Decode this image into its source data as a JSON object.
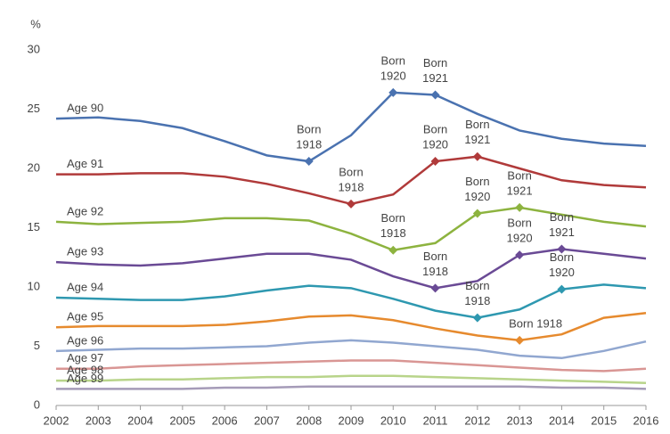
{
  "chart_data": {
    "type": "line",
    "y_label": "%",
    "x": [
      2002,
      2003,
      2004,
      2005,
      2006,
      2007,
      2008,
      2009,
      2010,
      2011,
      2012,
      2013,
      2014,
      2015,
      2016
    ],
    "xlim": [
      2002,
      2016
    ],
    "xticks": [
      2002,
      2003,
      2004,
      2005,
      2006,
      2007,
      2008,
      2009,
      2010,
      2011,
      2012,
      2013,
      2014,
      2015,
      2016
    ],
    "ylim": [
      0,
      30
    ],
    "yticks": [
      0,
      5,
      10,
      15,
      20,
      25,
      30
    ],
    "grid": false,
    "series": [
      {
        "name": "Age 90",
        "color": "#4a72b0",
        "values": [
          24.2,
          24.3,
          24.0,
          23.4,
          22.3,
          21.1,
          20.6,
          22.8,
          26.4,
          26.2,
          24.6,
          23.2,
          22.5,
          22.1,
          21.9
        ],
        "annotations": [
          {
            "x": 2008,
            "label": [
              "Born",
              "1918"
            ]
          },
          {
            "x": 2010,
            "label": [
              "Born",
              "1920"
            ]
          },
          {
            "x": 2011,
            "label": [
              "Born",
              "1921"
            ]
          }
        ]
      },
      {
        "name": "Age 91",
        "color": "#b03a3a",
        "values": [
          19.5,
          19.5,
          19.6,
          19.6,
          19.3,
          18.7,
          17.9,
          17.0,
          17.8,
          20.6,
          21.0,
          20.0,
          19.0,
          18.6,
          18.4
        ],
        "annotations": [
          {
            "x": 2009,
            "label": [
              "Born",
              "1918"
            ]
          },
          {
            "x": 2011,
            "label": [
              "Born",
              "1920"
            ]
          },
          {
            "x": 2012,
            "label": [
              "Born",
              "1921"
            ]
          }
        ]
      },
      {
        "name": "Age 92",
        "color": "#8db33f",
        "values": [
          15.5,
          15.3,
          15.4,
          15.5,
          15.8,
          15.8,
          15.6,
          14.5,
          13.1,
          13.7,
          16.2,
          16.7,
          16.1,
          15.5,
          15.1
        ],
        "annotations": [
          {
            "x": 2010,
            "label": [
              "Born",
              "1918"
            ]
          },
          {
            "x": 2012,
            "label": [
              "Born",
              "1920"
            ]
          },
          {
            "x": 2013,
            "label": [
              "Born",
              "1921"
            ]
          }
        ]
      },
      {
        "name": "Age 93",
        "color": "#6a4a95",
        "values": [
          12.1,
          11.9,
          11.8,
          12.0,
          12.4,
          12.8,
          12.8,
          12.3,
          10.9,
          9.9,
          10.5,
          12.7,
          13.2,
          12.8,
          12.4
        ],
        "annotations": [
          {
            "x": 2011,
            "label": [
              "Born",
              "1918"
            ]
          },
          {
            "x": 2013,
            "label": [
              "Born",
              "1920"
            ]
          },
          {
            "x": 2014,
            "label": [
              "Born",
              "1921"
            ]
          }
        ]
      },
      {
        "name": "Age 94",
        "color": "#2e98b0",
        "values": [
          9.1,
          9.0,
          8.9,
          8.9,
          9.2,
          9.7,
          10.1,
          9.9,
          9.0,
          8.0,
          7.4,
          8.1,
          9.8,
          10.2,
          9.9
        ],
        "annotations": [
          {
            "x": 2012,
            "label": [
              "Born",
              "1918"
            ]
          },
          {
            "x": 2014,
            "label": [
              "Born",
              "1920"
            ]
          }
        ]
      },
      {
        "name": "Age 95",
        "color": "#e68a2e",
        "values": [
          6.6,
          6.7,
          6.7,
          6.7,
          6.8,
          7.1,
          7.5,
          7.6,
          7.2,
          6.5,
          5.9,
          5.5,
          6.0,
          7.4,
          7.8
        ],
        "annotations": [
          {
            "x": 2013,
            "label": [
              "Born 1918"
            ]
          }
        ]
      },
      {
        "name": "Age 96",
        "color": "#91a7d0",
        "values": [
          4.6,
          4.7,
          4.8,
          4.8,
          4.9,
          5.0,
          5.3,
          5.5,
          5.3,
          5.0,
          4.7,
          4.2,
          4.0,
          4.6,
          5.4
        ]
      },
      {
        "name": "Age 97",
        "color": "#d99694",
        "values": [
          3.1,
          3.1,
          3.3,
          3.4,
          3.5,
          3.6,
          3.7,
          3.8,
          3.8,
          3.6,
          3.4,
          3.2,
          3.0,
          2.9,
          3.1
        ]
      },
      {
        "name": "Age 98",
        "color": "#b8d48a",
        "values": [
          2.1,
          2.1,
          2.2,
          2.2,
          2.3,
          2.4,
          2.4,
          2.5,
          2.5,
          2.4,
          2.3,
          2.2,
          2.1,
          2.0,
          1.9
        ]
      },
      {
        "name": "Age 99",
        "color": "#a59bb8",
        "values": [
          1.4,
          1.4,
          1.4,
          1.4,
          1.5,
          1.5,
          1.6,
          1.6,
          1.6,
          1.6,
          1.6,
          1.6,
          1.5,
          1.5,
          1.4
        ]
      }
    ]
  }
}
